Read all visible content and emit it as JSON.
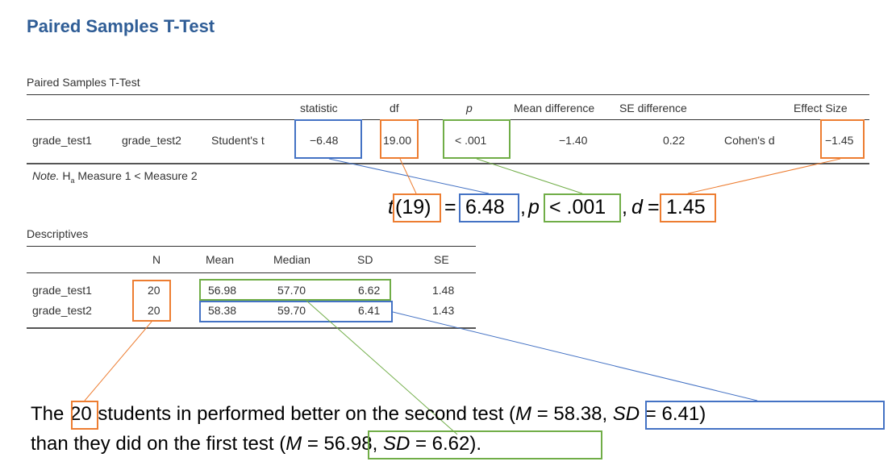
{
  "title": "Paired Samples T-Test",
  "ttest": {
    "caption": "Paired Samples T-Test",
    "headers": {
      "statistic": "statistic",
      "df": "df",
      "p": "p",
      "mean_diff": "Mean difference",
      "se_diff": "SE difference",
      "effect": "Effect Size"
    },
    "row": {
      "m1": "grade_test1",
      "m2": "grade_test2",
      "test": "Student's t",
      "statistic": "−6.48",
      "df": "19.00",
      "p": "< .001",
      "mean_diff": "−1.40",
      "se_diff": "0.22",
      "effect_type": "Cohen's d",
      "effect": "−1.45"
    },
    "note_label": "Note.",
    "note_h": "H",
    "note_sub": "a",
    "note_text": " Measure 1 < Measure 2"
  },
  "apa": {
    "t": "t",
    "df": "(19)",
    "eq1": " = ",
    "stat": "6.48",
    "comma1": ", ",
    "p": "p",
    "plt": "< .001",
    "comma2": ", ",
    "d": "d",
    "eq2": " = ",
    "effect": "1.45"
  },
  "desc": {
    "caption": "Descriptives",
    "headers": {
      "n": "N",
      "mean": "Mean",
      "median": "Median",
      "sd": "SD",
      "se": "SE"
    },
    "rows": [
      {
        "name": "grade_test1",
        "n": "20",
        "mean": "56.98",
        "median": "57.70",
        "sd": "6.62",
        "se": "1.48"
      },
      {
        "name": "grade_test2",
        "n": "20",
        "mean": "58.38",
        "median": "59.70",
        "sd": "6.41",
        "se": "1.43"
      }
    ]
  },
  "sentence": {
    "p1": "The ",
    "n": "20",
    "p2": " students in performed better on the second test ",
    "b1_open": "(",
    "b1_m": "M",
    "b1_eq": " = 58.38, ",
    "b1_sd": "SD",
    "b1_rest": " = 6.41)",
    "p3": "than they did on the first test ",
    "b2_open": "(",
    "b2_m": "M",
    "b2_eq": " = 56.98, ",
    "b2_sd": "SD",
    "b2_rest": " = 6.62)",
    "p4": "."
  },
  "colors": {
    "orange": "#ed7d31",
    "blue": "#4472c4",
    "green": "#70ad47",
    "title": "#2f5d96"
  }
}
